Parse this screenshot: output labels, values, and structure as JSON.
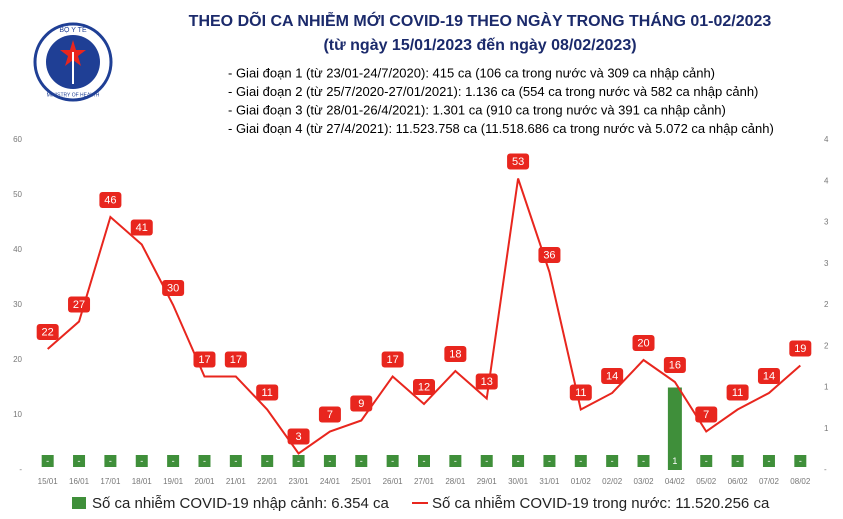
{
  "logo": {
    "top": "BỘ Y TẾ",
    "bottom": "MINISTRY OF HEALTH"
  },
  "chart_data": {
    "type": "bar-line",
    "title": "THEO DÕI CA NHIỄM MỚI COVID-19 THEO NGÀY TRONG THÁNG 01-02/2023",
    "subtitle": "(từ ngày 15/01/2023 đến ngày 08/02/2023)",
    "notes": [
      "- Giai đoạn 1 (từ 23/01-24/7/2020): 415 ca (106 ca trong nước và 309 ca nhập cảnh)",
      "- Giai đoạn 2 (từ 25/7/2020-27/01/2021): 1.136 ca (554 ca trong nước và 582 ca nhập cảnh)",
      "- Giai đoạn 3 (từ 28/01-26/4/2021): 1.301 ca (910 ca trong nước và 391 ca nhập cảnh)",
      "- Giai đoạn 4 (từ 27/4/2021): 11.523.758 ca (11.518.686 ca trong nước và 5.072 ca nhập cảnh)"
    ],
    "categories": [
      "15/01",
      "16/01",
      "17/01",
      "18/01",
      "19/01",
      "20/01",
      "21/01",
      "22/01",
      "23/01",
      "24/01",
      "25/01",
      "26/01",
      "27/01",
      "28/01",
      "29/01",
      "30/01",
      "31/01",
      "01/02",
      "02/02",
      "03/02",
      "04/02",
      "05/02",
      "06/02",
      "07/02",
      "08/02"
    ],
    "series": [
      {
        "name": "Số ca nhiễm COVID-19 nhập cảnh: 6.354 ca",
        "type": "bar",
        "axis": "y2",
        "color": "#3f8f3a",
        "values": [
          0,
          0,
          0,
          0,
          0,
          0,
          0,
          0,
          0,
          0,
          0,
          0,
          0,
          0,
          0,
          0,
          0,
          0,
          0,
          0,
          1,
          0,
          0,
          0,
          0
        ],
        "value_labels": [
          "-",
          "-",
          "-",
          "-",
          "-",
          "-",
          "-",
          "-",
          "-",
          "-",
          "-",
          "-",
          "-",
          "-",
          "-",
          "-",
          "-",
          "-",
          "-",
          "-",
          "1",
          "-",
          "-",
          "-",
          "-"
        ]
      },
      {
        "name": "Số ca nhiễm COVID-19 trong nước: 11.520.256 ca",
        "type": "line",
        "color": "#e8261e",
        "values": [
          22,
          27,
          46,
          41,
          30,
          17,
          17,
          11,
          3,
          7,
          9,
          17,
          12,
          18,
          13,
          53,
          36,
          11,
          14,
          20,
          16,
          7,
          11,
          14,
          19
        ]
      }
    ],
    "ylim": [
      0,
      60
    ],
    "yticks": [
      {
        "value": 0,
        "label": "-"
      },
      10,
      20,
      30,
      40,
      50,
      60
    ],
    "y2lim": [
      0,
      4
    ],
    "y2ticks": [
      {
        "value": 0,
        "label": "-"
      },
      {
        "value": 0.5,
        "label": "1"
      },
      1,
      {
        "value": 1.5,
        "label": "2"
      },
      2,
      {
        "value": 2.5,
        "label": "3"
      },
      3,
      {
        "value": 3.5,
        "label": "4"
      },
      4
    ],
    "grid": false
  }
}
